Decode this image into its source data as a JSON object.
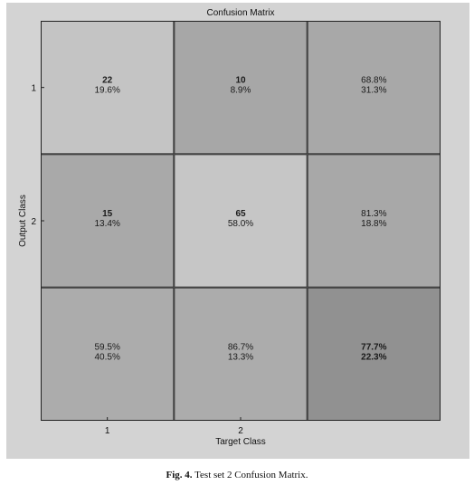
{
  "chart_data": {
    "type": "heatmap",
    "title": "Confusion Matrix",
    "xlabel": "Target Class",
    "ylabel": "Output Class",
    "x_tick_labels": [
      "1",
      "2"
    ],
    "y_tick_labels": [
      "1",
      "2"
    ],
    "cells": [
      [
        {
          "count": "22",
          "percent": "19.6%",
          "shade": "#c4c4c4",
          "bold": true
        },
        {
          "count": "10",
          "percent": "8.9%",
          "shade": "#a7a7a7",
          "bold": true
        },
        {
          "line1": "68.8%",
          "line2": "31.3%",
          "shade": "#a8a8a8",
          "bold": false
        }
      ],
      [
        {
          "count": "15",
          "percent": "13.4%",
          "shade": "#a9a9a9",
          "bold": true
        },
        {
          "count": "65",
          "percent": "58.0%",
          "shade": "#c6c6c6",
          "bold": true
        },
        {
          "line1": "81.3%",
          "line2": "18.8%",
          "shade": "#a8a8a8",
          "bold": false
        }
      ],
      [
        {
          "line1": "59.5%",
          "line2": "40.5%",
          "shade": "#acacac",
          "bold": false
        },
        {
          "line1": "86.7%",
          "line2": "13.3%",
          "shade": "#acacac",
          "bold": false
        },
        {
          "line1": "77.7%",
          "line2": "22.3%",
          "shade": "#919191",
          "bold": true
        }
      ]
    ]
  },
  "caption": {
    "label": "Fig. 4.",
    "text": "Test set 2 Confusion Matrix."
  }
}
